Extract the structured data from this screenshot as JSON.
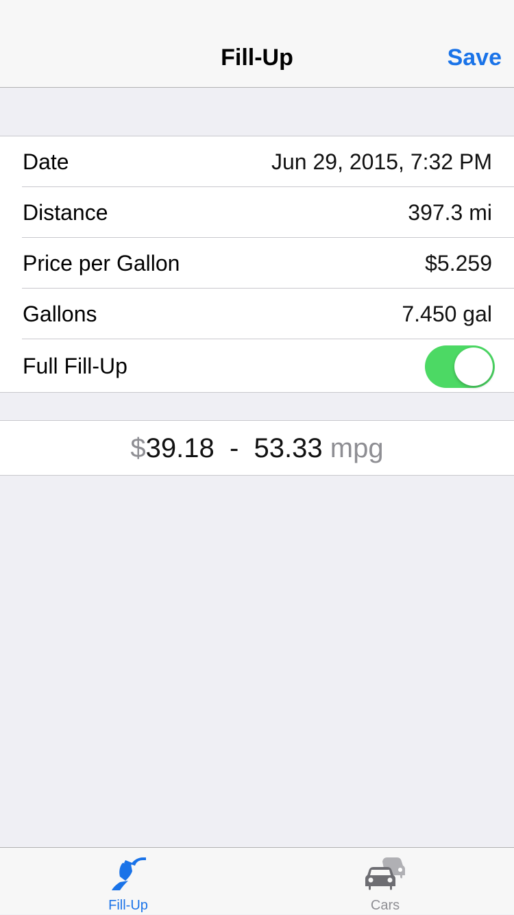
{
  "navbar": {
    "title": "Fill-Up",
    "save_label": "Save"
  },
  "form": {
    "rows": [
      {
        "label": "Date",
        "value": "Jun 29, 2015, 7:32 PM"
      },
      {
        "label": "Distance",
        "value": "397.3 mi"
      },
      {
        "label": "Price per Gallon",
        "value": "$5.259"
      },
      {
        "label": "Gallons",
        "value": "7.450 gal"
      }
    ],
    "full_fillup": {
      "label": "Full Fill-Up",
      "on": true
    }
  },
  "summary": {
    "currency": "$",
    "cost": "39.18",
    "separator": "-",
    "mpg_value": "53.33",
    "mpg_unit": "mpg"
  },
  "tabbar": {
    "tabs": [
      {
        "label": "Fill-Up",
        "icon": "fuel-nozzle-icon",
        "selected": true
      },
      {
        "label": "Cars",
        "icon": "cars-icon",
        "selected": false
      }
    ]
  },
  "colors": {
    "accent": "#1a73e8",
    "toggle_on": "#4cd964",
    "background": "#efeff4",
    "muted_text": "#8e8e93"
  }
}
